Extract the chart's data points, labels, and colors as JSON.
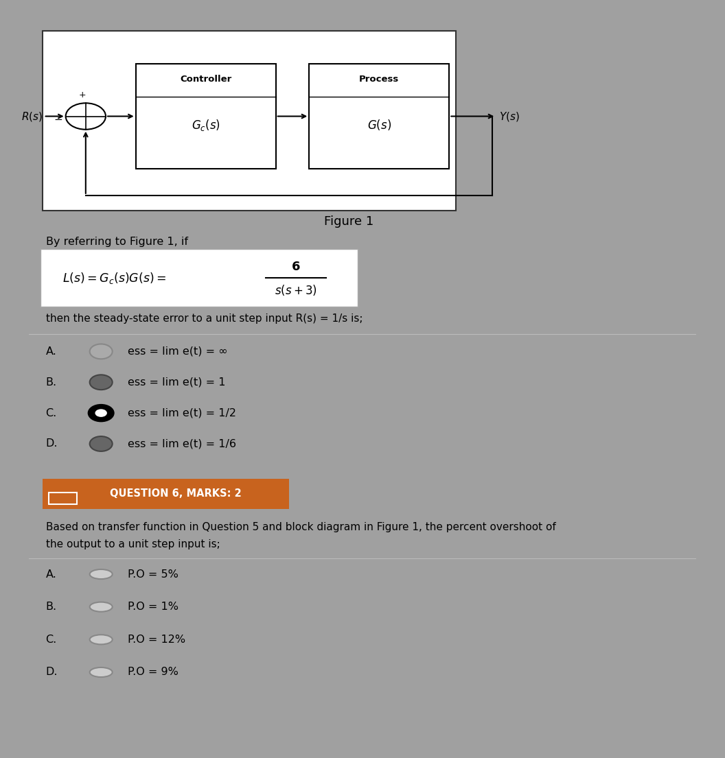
{
  "bg_color_top": "#4da6d9",
  "bg_color_bottom": "#e0e0e0",
  "bg_color_fig": "#a0a0a0",
  "figure_caption": "Figure 1",
  "intro_text": "By referring to Figure 1, if",
  "formula_numerator": "6",
  "formula_denominator": "s(s + 3)",
  "steady_state_text": "then the steady-state error to a unit step input R(s) = 1/s is;",
  "q5_options": [
    {
      "label": "A.",
      "text": "ess = lim e(t) = ∞",
      "selected": false,
      "filled": false
    },
    {
      "label": "B.",
      "text": "ess = lim e(t) = 1",
      "selected": false,
      "filled": true
    },
    {
      "label": "C.",
      "text": "ess = lim e(t) = 1/2",
      "selected": true,
      "filled": true
    },
    {
      "label": "D.",
      "text": "ess = lim e(t) = 1/6",
      "selected": false,
      "filled": true
    }
  ],
  "q6_badge_color": "#c8631e",
  "q6_badge_text": "QUESTION 6, MARKS: 2",
  "q6_question_line1": "Based on transfer function in Question 5 and block diagram in Figure 1, the percent overshoot of",
  "q6_question_line2": "the output to a unit step input is;",
  "q6_options": [
    {
      "label": "A.",
      "text": "P.O = 5%"
    },
    {
      "label": "B.",
      "text": "P.O = 1%"
    },
    {
      "label": "C.",
      "text": "P.O = 12%"
    },
    {
      "label": "D.",
      "text": "P.O = 9%"
    }
  ],
  "controller_label": "Controller",
  "controller_tf": "$G_c(s)$",
  "process_label": "Process",
  "process_tf": "$G(s)$",
  "input_label": "$R(s)$",
  "output_label": "$Y(s)$"
}
